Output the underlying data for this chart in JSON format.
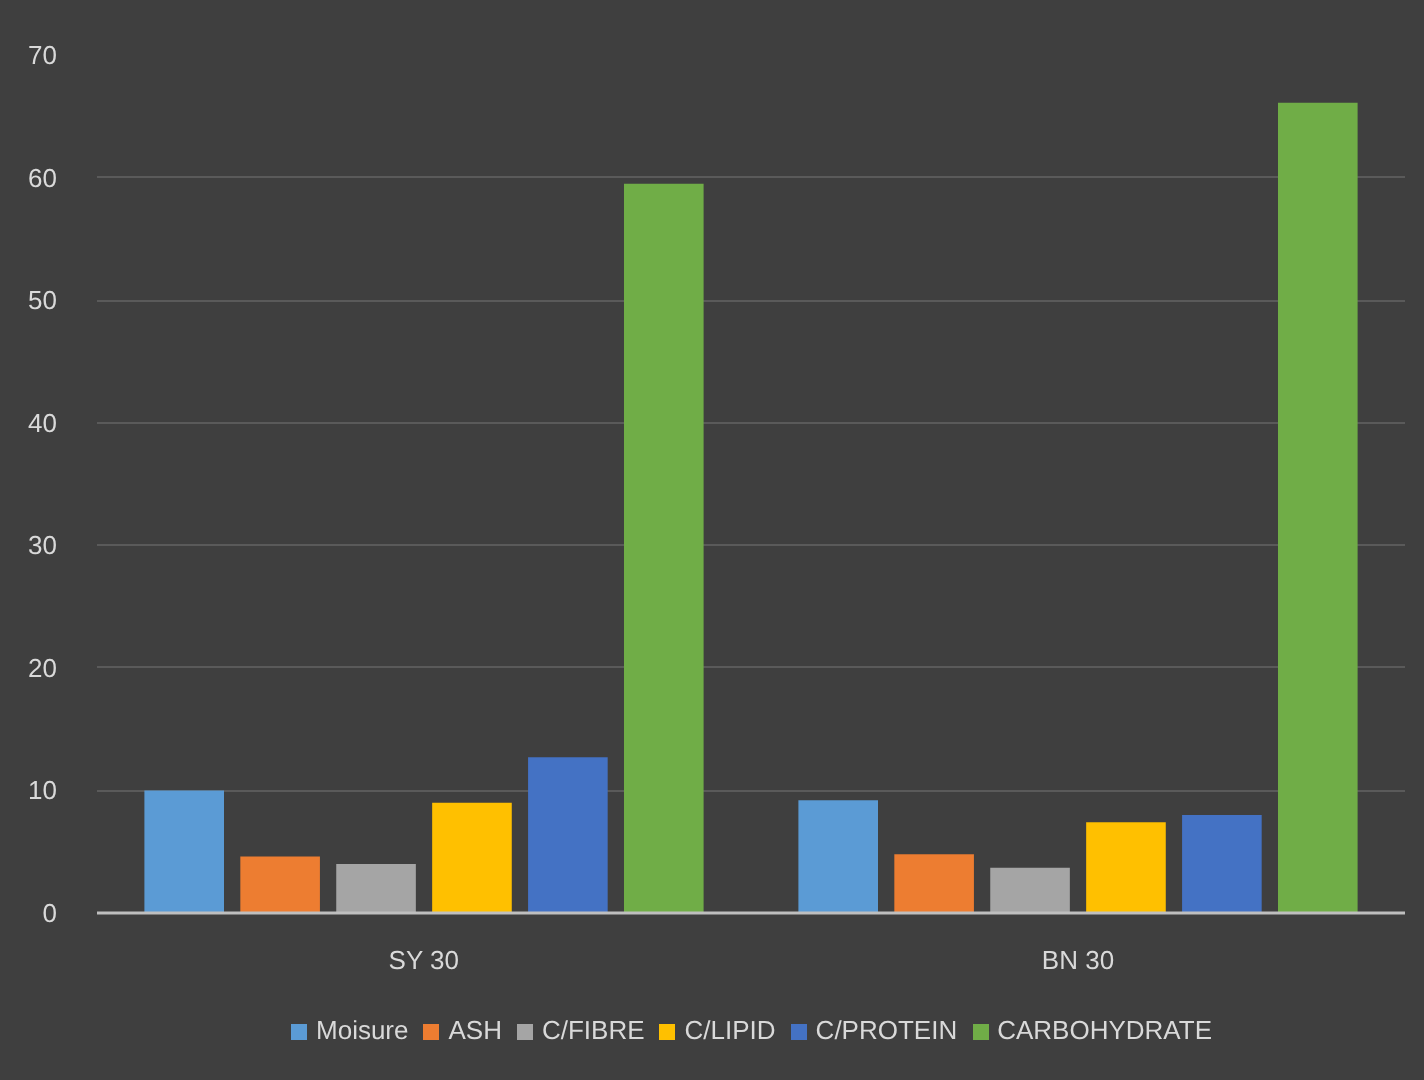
{
  "chart_data": {
    "type": "bar",
    "categories": [
      "SY 30",
      "BN 30"
    ],
    "series": [
      {
        "name": "Moisure",
        "color": "#5b9bd5",
        "values": [
          10.0,
          9.2
        ]
      },
      {
        "name": "ASH",
        "color": "#ed7d31",
        "values": [
          4.6,
          4.8
        ]
      },
      {
        "name": "C/FIBRE",
        "color": "#a5a5a5",
        "values": [
          4.0,
          3.7
        ]
      },
      {
        "name": "C/LIPID",
        "color": "#ffc000",
        "values": [
          9.0,
          7.4
        ]
      },
      {
        "name": "C/PROTEIN",
        "color": "#4472c4",
        "values": [
          12.7,
          8.0
        ]
      },
      {
        "name": "CARBOHYDRATE",
        "color": "#70ad47",
        "values": [
          59.5,
          66.1
        ]
      }
    ],
    "ylim": [
      0,
      70
    ],
    "yticks": [
      0,
      10,
      20,
      30,
      40,
      50,
      60,
      70
    ],
    "grid": "y",
    "legend": "bottom"
  }
}
